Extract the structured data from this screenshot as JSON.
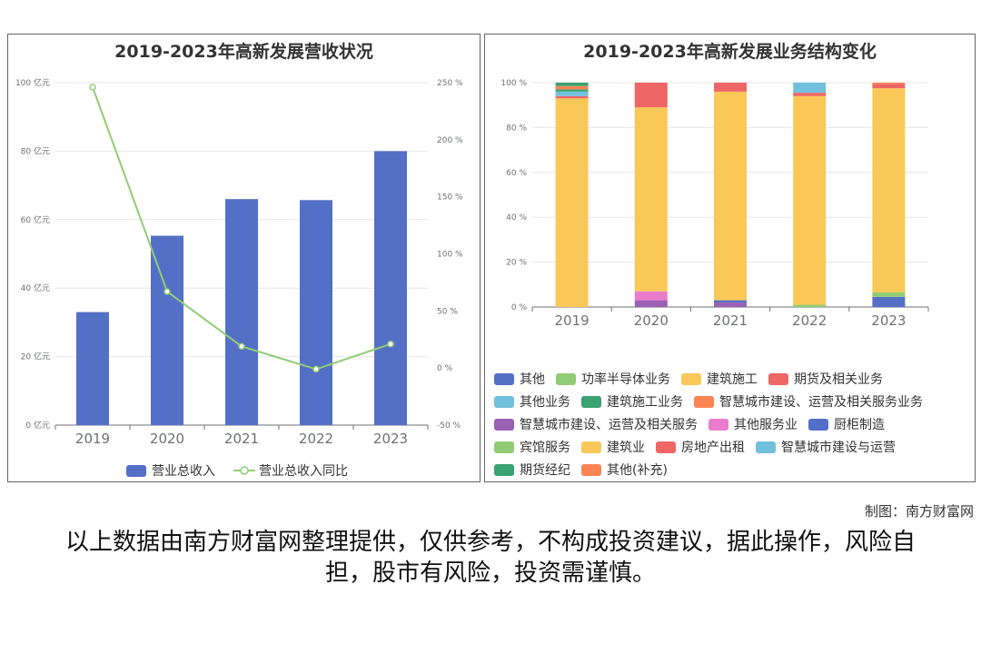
{
  "credit": "制图：南方财富网",
  "disclaimer": "以上数据由南方财富网整理提供，仅供参考，不构成投资建议，据此操作，风险自担，股市有风险，投资需谨慎。",
  "chart_data": [
    {
      "type": "bar",
      "title": "2019-2023年高新发展营收状况",
      "categories": [
        "2019",
        "2020",
        "2021",
        "2022",
        "2023"
      ],
      "y_left": {
        "range": [
          0,
          100
        ],
        "ticks": [
          "0 亿元",
          "20 亿元",
          "40 亿元",
          "60 亿元",
          "80 亿元",
          "100 亿元"
        ]
      },
      "y_right": {
        "range": [
          -50,
          250
        ],
        "ticks": [
          "-50 %",
          "0 %",
          "50 %",
          "100 %",
          "150 %",
          "200 %",
          "250 %"
        ]
      },
      "series": [
        {
          "name": "营业总收入",
          "kind": "bar",
          "axis": "left",
          "color": "#5470c6",
          "values": [
            33,
            55.3,
            66,
            65.7,
            80
          ]
        },
        {
          "name": "营业总收入同比",
          "kind": "line",
          "axis": "right",
          "color": "#91cc75",
          "values": [
            246,
            67,
            19,
            -1,
            21
          ]
        }
      ],
      "grid": true,
      "legend": "bottom"
    },
    {
      "type": "bar",
      "stacked": true,
      "title": "2019-2023年高新发展业务结构变化",
      "categories": [
        "2019",
        "2020",
        "2021",
        "2022",
        "2023"
      ],
      "y": {
        "range": [
          0,
          100
        ],
        "ticks": [
          "0 %",
          "20 %",
          "40 %",
          "60 %",
          "80 %",
          "100 %"
        ]
      },
      "series": [
        {
          "name": "其他",
          "color": "#5470c6",
          "values": [
            0,
            0,
            0,
            0,
            4.5
          ]
        },
        {
          "name": "功率半导体业务",
          "color": "#91cc75",
          "values": [
            0,
            0,
            0,
            1,
            2
          ]
        },
        {
          "name": "建筑施工",
          "color": "#fac858",
          "values": [
            93,
            0,
            0,
            0,
            0
          ]
        },
        {
          "name": "期货及相关业务",
          "color": "#ee6666",
          "values": [
            1,
            0,
            0,
            0,
            0
          ]
        },
        {
          "name": "其他业务",
          "color": "#73c0de",
          "values": [
            2,
            0,
            0,
            0,
            0
          ]
        },
        {
          "name": "建筑施工业务",
          "color": "#3ba272",
          "values": [
            1,
            0,
            0,
            0,
            0
          ]
        },
        {
          "name": "智慧城市建设、运营及相关服务业务",
          "color": "#fc8452",
          "values": [
            1.5,
            0,
            0,
            0,
            0
          ]
        },
        {
          "name": "智慧城市建设、运营及相关服务",
          "color": "#9a60b4",
          "values": [
            0,
            3,
            2,
            0,
            0
          ]
        },
        {
          "name": "其他服务业",
          "color": "#ea7ccc",
          "values": [
            0,
            4,
            0,
            0,
            0
          ]
        },
        {
          "name": "厨柜制造",
          "color": "#5470c6",
          "values": [
            0,
            0,
            1,
            0,
            0
          ]
        },
        {
          "name": "宾馆服务",
          "color": "#91cc75",
          "values": [
            0,
            0,
            0,
            0,
            0
          ]
        },
        {
          "name": "建筑业",
          "color": "#fac858",
          "values": [
            0,
            82,
            93,
            93,
            91
          ]
        },
        {
          "name": "房地产出租",
          "color": "#ee6666",
          "values": [
            0,
            11,
            4,
            1.5,
            2
          ]
        },
        {
          "name": "智慧城市建设与运营",
          "color": "#73c0de",
          "values": [
            0,
            0,
            0,
            4.5,
            0
          ]
        },
        {
          "name": "期货经纪",
          "color": "#3ba272",
          "values": [
            1.5,
            0,
            0,
            0,
            0
          ]
        },
        {
          "name": "其他(补充)",
          "color": "#fc8452",
          "values": [
            0,
            0,
            0,
            0,
            0.5
          ]
        }
      ],
      "grid": true,
      "legend": "bottom"
    }
  ]
}
